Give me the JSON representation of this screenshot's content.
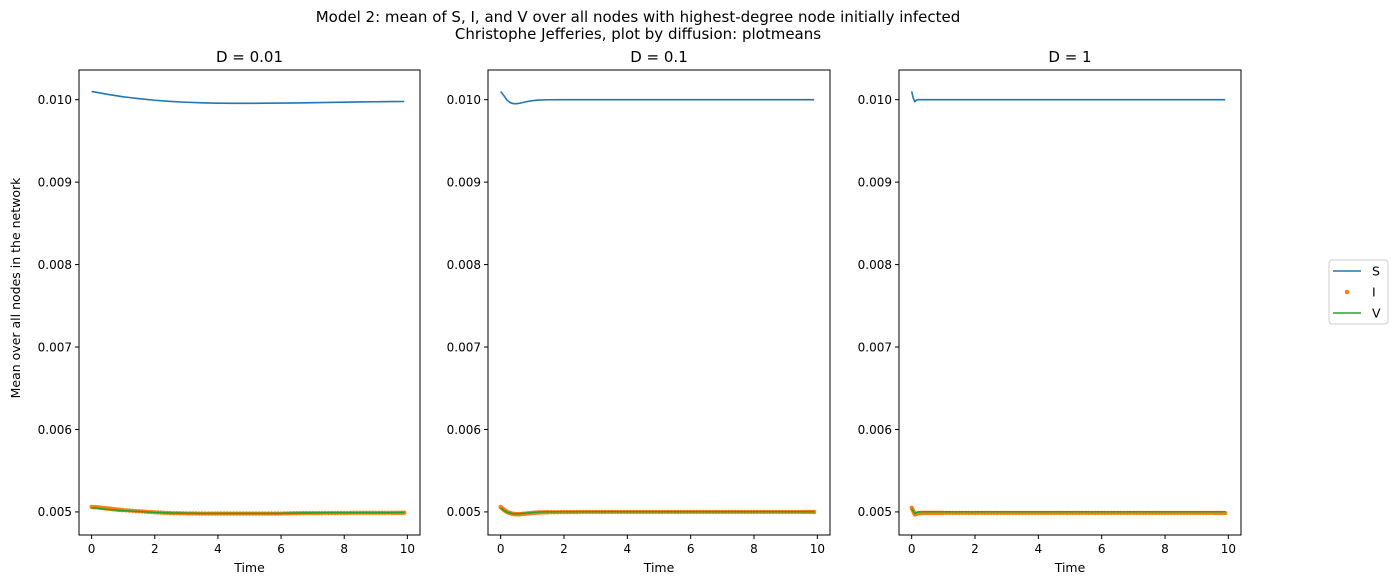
{
  "figure": {
    "title_line1": "Model 2: mean of S, I, and V over all nodes with highest-degree node initially infected",
    "title_line2": "Christophe Jefferies, plot by diffusion: plotmeans",
    "ylabel": "Mean over all nodes in the network"
  },
  "colors": {
    "S": "#1f77b4",
    "I": "#ff7f0e",
    "V": "#2ca02c"
  },
  "legend": {
    "placement": "center-right",
    "entries": [
      "S",
      "I",
      "V"
    ]
  },
  "chart_data": [
    {
      "type": "line",
      "title": "D = 0.01",
      "xlabel": "Time",
      "ylabel": "Mean over all nodes in the network",
      "xlim": [
        -0.4,
        10.4
      ],
      "ylim": [
        0.00472,
        0.01036
      ],
      "xticks": [
        0,
        2,
        4,
        6,
        8,
        10
      ],
      "yticks": [
        "0.005",
        "0.006",
        "0.007",
        "0.008",
        "0.009",
        "0.010"
      ],
      "grid": false,
      "series": [
        {
          "name": "S",
          "style": "line",
          "x": [
            0,
            0.5,
            1,
            1.5,
            2,
            2.5,
            3,
            3.5,
            4,
            4.5,
            5,
            5.5,
            6,
            6.5,
            7,
            7.5,
            8,
            8.5,
            9,
            9.5,
            9.9
          ],
          "y": [
            0.0101,
            0.010065,
            0.010035,
            0.010012,
            0.009993,
            0.009979,
            0.009969,
            0.009962,
            0.009958,
            0.009956,
            0.009956,
            0.009957,
            0.009959,
            0.009961,
            0.009964,
            0.009967,
            0.00997,
            0.009973,
            0.009975,
            0.009977,
            0.009978
          ]
        },
        {
          "name": "I",
          "style": "points",
          "x": [
            0,
            0.2,
            0.4,
            0.6,
            0.8,
            1,
            1.5,
            2,
            2.5,
            3,
            3.5,
            4,
            4.5,
            5,
            5.5,
            6,
            6.5,
            7,
            7.5,
            8,
            8.5,
            9,
            9.5,
            9.9
          ],
          "y": [
            0.00506,
            0.005055,
            0.005045,
            0.005037,
            0.005028,
            0.005022,
            0.005008,
            0.004995,
            0.004986,
            0.004982,
            0.00498,
            0.00498,
            0.00498,
            0.00498,
            0.00498,
            0.00498,
            0.004985,
            0.004986,
            0.004987,
            0.004988,
            0.004989,
            0.004989,
            0.004989,
            0.00499
          ]
        },
        {
          "name": "V",
          "style": "line",
          "x": [
            0,
            0.2,
            0.4,
            0.6,
            0.8,
            1,
            1.5,
            2,
            2.5,
            3,
            3.5,
            4,
            4.5,
            5,
            5.5,
            6,
            6.5,
            7,
            7.5,
            8,
            8.5,
            9,
            9.5,
            9.9
          ],
          "y": [
            0.00505,
            0.005045,
            0.005035,
            0.005028,
            0.00502,
            0.005015,
            0.005005,
            0.004994,
            0.004988,
            0.004984,
            0.004982,
            0.004982,
            0.004982,
            0.004982,
            0.004982,
            0.004983,
            0.004988,
            0.004989,
            0.00499,
            0.00499,
            0.004991,
            0.004991,
            0.004991,
            0.004992
          ]
        }
      ]
    },
    {
      "type": "line",
      "title": "D = 0.1",
      "xlabel": "Time",
      "ylabel": "",
      "xlim": [
        -0.4,
        10.4
      ],
      "ylim": [
        0.00472,
        0.01036
      ],
      "xticks": [
        0,
        2,
        4,
        6,
        8,
        10
      ],
      "yticks": [
        "0.005",
        "0.006",
        "0.007",
        "0.008",
        "0.009",
        "0.010"
      ],
      "grid": false,
      "series": [
        {
          "name": "S",
          "style": "line",
          "x": [
            0,
            0.1,
            0.2,
            0.3,
            0.4,
            0.5,
            0.6,
            0.8,
            1,
            1.2,
            1.5,
            2,
            3,
            4,
            5,
            6,
            7,
            8,
            9,
            9.9
          ],
          "y": [
            0.0101,
            0.01005,
            0.009995,
            0.009965,
            0.009952,
            0.009951,
            0.009957,
            0.009975,
            0.009988,
            0.009995,
            0.009999,
            0.01,
            0.01,
            0.01,
            0.01,
            0.01,
            0.01,
            0.01,
            0.01,
            0.01
          ]
        },
        {
          "name": "I",
          "style": "points",
          "x": [
            0,
            0.1,
            0.2,
            0.3,
            0.4,
            0.5,
            0.6,
            0.8,
            1,
            1.2,
            1.5,
            2,
            2.5,
            3,
            3.5,
            4,
            4.5,
            5,
            5.5,
            6,
            6.5,
            7,
            7.5,
            8,
            8.5,
            9,
            9.5,
            9.9
          ],
          "y": [
            0.00506,
            0.005025,
            0.005,
            0.004985,
            0.004975,
            0.004972,
            0.004973,
            0.00498,
            0.004988,
            0.004993,
            0.004996,
            0.004998,
            0.004999,
            0.005,
            0.005,
            0.005,
            0.005,
            0.005,
            0.005,
            0.005,
            0.005,
            0.005,
            0.005,
            0.005,
            0.005,
            0.005,
            0.005,
            0.005
          ]
        },
        {
          "name": "V",
          "style": "line",
          "x": [
            0,
            0.1,
            0.2,
            0.3,
            0.4,
            0.5,
            0.6,
            0.8,
            1,
            1.2,
            1.5,
            2,
            3,
            4,
            5,
            6,
            7,
            8,
            9,
            9.9
          ],
          "y": [
            0.00505,
            0.00502,
            0.004998,
            0.004986,
            0.004978,
            0.004976,
            0.004978,
            0.004986,
            0.004993,
            0.004998,
            0.005001,
            0.005002,
            0.005003,
            0.005003,
            0.005003,
            0.005003,
            0.005003,
            0.005003,
            0.005003,
            0.005003
          ]
        }
      ]
    },
    {
      "type": "line",
      "title": "D = 1",
      "xlabel": "Time",
      "ylabel": "",
      "xlim": [
        -0.4,
        10.4
      ],
      "ylim": [
        0.00472,
        0.01036
      ],
      "xticks": [
        0,
        2,
        4,
        6,
        8,
        10
      ],
      "yticks": [
        "0.005",
        "0.006",
        "0.007",
        "0.008",
        "0.009",
        "0.010"
      ],
      "grid": false,
      "series": [
        {
          "name": "S",
          "style": "line",
          "x": [
            0,
            0.05,
            0.1,
            0.15,
            0.2,
            0.3,
            0.5,
            1,
            2,
            3,
            4,
            5,
            6,
            7,
            8,
            9,
            9.9
          ],
          "y": [
            0.0101,
            0.01002,
            0.009975,
            0.009995,
            0.01,
            0.01,
            0.01,
            0.01,
            0.01,
            0.01,
            0.01,
            0.01,
            0.01,
            0.01,
            0.01,
            0.01,
            0.01
          ]
        },
        {
          "name": "I",
          "style": "points",
          "x": [
            0,
            0.1,
            0.2,
            0.4,
            0.6,
            0.8,
            1,
            1.5,
            2,
            2.5,
            3,
            3.5,
            4,
            4.5,
            5,
            5.5,
            6,
            6.5,
            7,
            7.5,
            8,
            8.5,
            9,
            9.5,
            9.9
          ],
          "y": [
            0.00505,
            0.00497,
            0.004985,
            0.004988,
            0.004988,
            0.004988,
            0.004988,
            0.004988,
            0.004988,
            0.004988,
            0.004988,
            0.004988,
            0.004988,
            0.004988,
            0.004988,
            0.004988,
            0.004988,
            0.004988,
            0.004988,
            0.004988,
            0.004988,
            0.004988,
            0.004988,
            0.004988,
            0.004988
          ]
        },
        {
          "name": "V",
          "style": "line",
          "x": [
            0,
            0.1,
            0.2,
            0.3,
            0.5,
            1,
            2,
            3,
            4,
            5,
            6,
            7,
            8,
            9,
            9.9
          ],
          "y": [
            0.00504,
            0.00498,
            0.004998,
            0.005002,
            0.005002,
            0.005002,
            0.005002,
            0.005002,
            0.005002,
            0.005002,
            0.005002,
            0.005002,
            0.005002,
            0.005002,
            0.005002
          ]
        }
      ]
    }
  ]
}
